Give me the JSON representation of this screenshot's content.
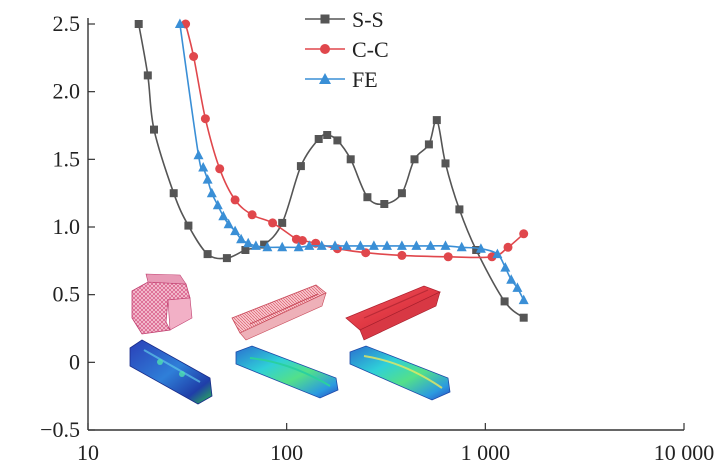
{
  "chart_data": {
    "type": "line",
    "x_scale": "log",
    "xlim": [
      10,
      10000
    ],
    "ylim": [
      -0.5,
      2.5
    ],
    "x_ticks": [
      10,
      100,
      1000,
      10000
    ],
    "x_tick_labels": [
      "10",
      "100",
      "1 000",
      "10 000"
    ],
    "y_ticks": [
      -0.5,
      0,
      0.5,
      1.0,
      1.5,
      2.0,
      2.5
    ],
    "y_tick_labels": [
      "−0.5",
      "0",
      "0.5",
      "1.0",
      "1.5",
      "2.0",
      "2.5"
    ],
    "grid": false,
    "legend_position": "top-center",
    "series": [
      {
        "name": "S-S",
        "color": "#555555",
        "marker": "square",
        "x": [
          18,
          20,
          21.5,
          27,
          32,
          40,
          50,
          62,
          77,
          95,
          118,
          145,
          160,
          180,
          210,
          255,
          310,
          380,
          440,
          520,
          570,
          630,
          740,
          900,
          1250,
          1560
        ],
        "y": [
          2.5,
          2.12,
          1.72,
          1.25,
          1.01,
          0.8,
          0.77,
          0.83,
          0.87,
          1.03,
          1.45,
          1.65,
          1.68,
          1.64,
          1.5,
          1.22,
          1.17,
          1.25,
          1.5,
          1.61,
          1.79,
          1.47,
          1.13,
          0.83,
          0.45,
          0.33
        ]
      },
      {
        "name": "C-C",
        "color": "#e0474c",
        "marker": "circle",
        "x": [
          31,
          34,
          39,
          46,
          55,
          67,
          85,
          112,
          120,
          140,
          180,
          250,
          380,
          650,
          1080,
          1300,
          1560
        ],
        "y": [
          2.5,
          2.26,
          1.8,
          1.43,
          1.2,
          1.09,
          1.03,
          0.91,
          0.9,
          0.88,
          0.84,
          0.81,
          0.79,
          0.78,
          0.78,
          0.85,
          0.95
        ]
      },
      {
        "name": "FE",
        "color": "#3a8fd6",
        "marker": "triangle",
        "x": [
          29,
          36,
          38,
          40,
          42,
          45,
          48,
          51,
          55,
          59,
          64,
          70,
          80,
          95,
          115,
          130,
          150,
          175,
          200,
          235,
          275,
          320,
          380,
          450,
          530,
          630,
          760,
          950,
          1150,
          1260,
          1350,
          1450,
          1560
        ],
        "y": [
          2.5,
          1.53,
          1.44,
          1.35,
          1.25,
          1.16,
          1.08,
          1.02,
          0.97,
          0.91,
          0.88,
          0.86,
          0.85,
          0.85,
          0.85,
          0.86,
          0.86,
          0.86,
          0.86,
          0.86,
          0.86,
          0.86,
          0.86,
          0.86,
          0.86,
          0.86,
          0.85,
          0.84,
          0.8,
          0.7,
          0.61,
          0.55,
          0.46
        ]
      }
    ]
  },
  "insets": [
    {
      "colormap": "pink-wireframe"
    },
    {
      "colormap": "pink-wireframe"
    },
    {
      "colormap": "red-solid"
    },
    {
      "colormap": "blue-contour"
    },
    {
      "colormap": "cyan-contour"
    },
    {
      "colormap": "cyan-contour"
    }
  ]
}
